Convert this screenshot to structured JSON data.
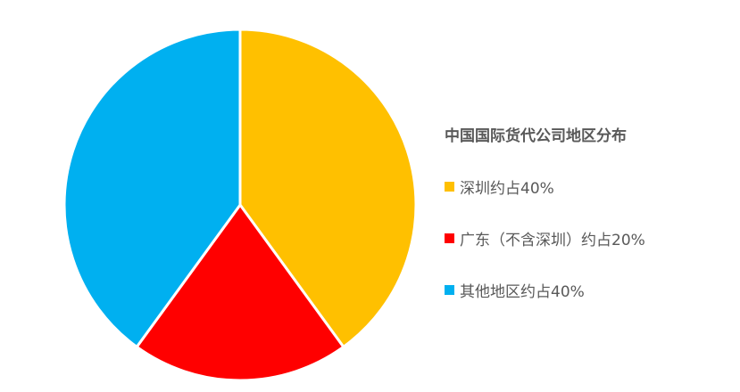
{
  "chart_data": {
    "type": "pie",
    "title": "中国国际货代公司地区分布",
    "start_angle": "12 o'clock",
    "direction": "clockwise",
    "legend_position": "right",
    "slices": [
      {
        "label": "深圳约占40%",
        "value": 40,
        "color": "#FFC000"
      },
      {
        "label": "广东（不含深圳）约占20%",
        "value": 20,
        "color": "#FF0000"
      },
      {
        "label": "其他地区约占40%",
        "value": 40,
        "color": "#00B0F0"
      }
    ]
  }
}
